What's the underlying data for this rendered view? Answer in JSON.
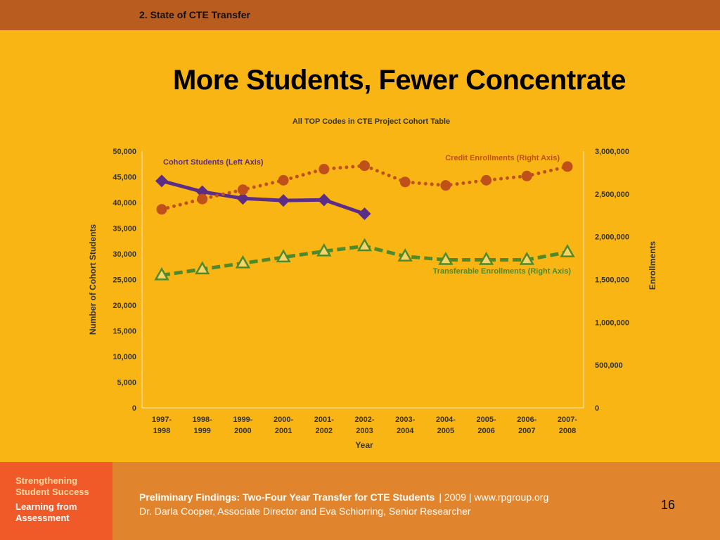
{
  "header": {
    "section": "2. State of CTE Transfer"
  },
  "slide": {
    "title": "More Students, Fewer Concentrate"
  },
  "chart_data": {
    "type": "line",
    "title": "All TOP Codes in CTE Project Cohort Table",
    "xlabel": "Year",
    "ylabel": "Number of Cohort Students",
    "y2label": "Enrollments",
    "categories": [
      "1997-1998",
      "1998-1999",
      "1999-2000",
      "2000-2001",
      "2001-2002",
      "2002-2003",
      "2003-2004",
      "2004-2005",
      "2005-2006",
      "2006-2007",
      "2007-2008"
    ],
    "ylim": [
      0,
      50000
    ],
    "y2lim": [
      0,
      3000000
    ],
    "yticks": [
      "0",
      "5,000",
      "10,000",
      "15,000",
      "20,000",
      "25,000",
      "30,000",
      "35,000",
      "40,000",
      "45,000",
      "50,000"
    ],
    "y2ticks": [
      "0",
      "500,000",
      "1,000,000",
      "1,500,000",
      "2,000,000",
      "2,500,000",
      "3,000,000"
    ],
    "grid": false,
    "series": [
      {
        "name": "Cohort Students (Left Axis)",
        "axis": "left",
        "color": "#5b2d86",
        "marker": "diamond",
        "style": "solid",
        "values": [
          44200,
          42100,
          40800,
          40400,
          40500,
          37800,
          null,
          null,
          null,
          null,
          null
        ]
      },
      {
        "name": "Credit Enrollments (Right Axis)",
        "axis": "right",
        "color": "#c0501a",
        "marker": "circle",
        "style": "dotted",
        "values": [
          2320000,
          2440000,
          2550000,
          2660000,
          2790000,
          2830000,
          2640000,
          2600000,
          2660000,
          2710000,
          2820000
        ]
      },
      {
        "name": "Transferable Enrollments (Right Axis)",
        "axis": "right",
        "color": "#4f8a2a",
        "marker": "triangle",
        "style": "dashed",
        "values": [
          1550000,
          1620000,
          1690000,
          1760000,
          1830000,
          1890000,
          1770000,
          1730000,
          1730000,
          1730000,
          1820000
        ]
      }
    ]
  },
  "footer": {
    "logo_line1": "Strengthening",
    "logo_line2": "Student Success",
    "logo_line3": "Learning from",
    "logo_line4": "Assessment",
    "report_title": "Preliminary Findings: Two-Four Year Transfer for CTE Students",
    "meta": "|  2009  |  www.rpgroup.org",
    "authors": "Dr. Darla Cooper, Associate Director and Eva Schiorring, Senior Researcher",
    "page_number": "16"
  },
  "colors": {
    "background": "#f9b514",
    "topbar": "#b95c20",
    "footer": "#e0852e",
    "logo_block": "#f05a28"
  }
}
